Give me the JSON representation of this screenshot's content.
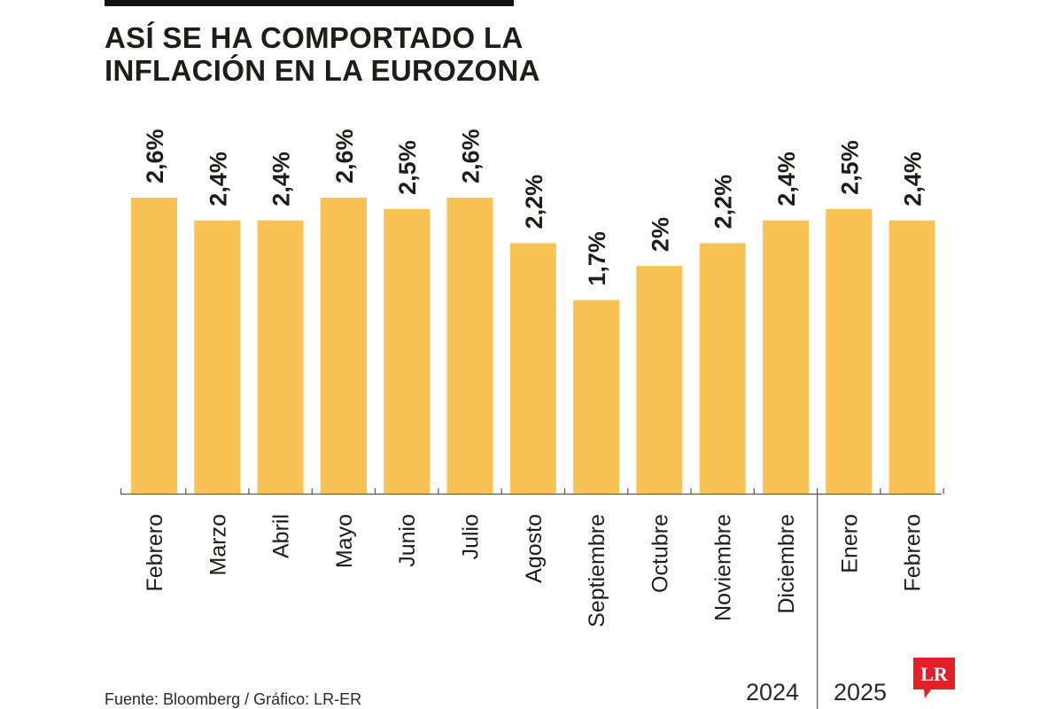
{
  "header": {
    "title_line1": "ASÍ SE HA COMPORTADO LA",
    "title_line2": "INFLACIÓN EN LA EUROZONA"
  },
  "footer": {
    "source": "Fuente: Bloomberg / Gráfico: LR-ER",
    "year_left": "2024",
    "year_right": "2025",
    "logo_text": "LR"
  },
  "colors": {
    "bar": "#f8c254",
    "text": "#1d1d1b",
    "axis": "#555555",
    "logo": "#e3202a"
  },
  "chart_data": {
    "type": "bar",
    "categories": [
      "Febrero",
      "Marzo",
      "Abril",
      "Mayo",
      "Junio",
      "Julio",
      "Agosto",
      "Septiembre",
      "Octubre",
      "Noviembre",
      "Diciembre",
      "Enero",
      "Febrero"
    ],
    "values": [
      2.6,
      2.4,
      2.4,
      2.6,
      2.5,
      2.6,
      2.2,
      1.7,
      2.0,
      2.2,
      2.4,
      2.5,
      2.4
    ],
    "labels": [
      "2,6%",
      "2,4%",
      "2,4%",
      "2,6%",
      "2,5%",
      "2,6%",
      "2,2%",
      "1,7%",
      "2%",
      "2,2%",
      "2,4%",
      "2,5%",
      "2,4%"
    ],
    "year_groups": [
      {
        "year": "2024",
        "categories": [
          "Febrero",
          "Marzo",
          "Abril",
          "Mayo",
          "Junio",
          "Julio",
          "Agosto",
          "Septiembre",
          "Octubre",
          "Noviembre",
          "Diciembre"
        ]
      },
      {
        "year": "2025",
        "categories": [
          "Enero",
          "Febrero"
        ]
      }
    ],
    "ylim": [
      0,
      2.6
    ],
    "grid": false,
    "legend": "none",
    "title": "ASÍ SE HA COMPORTADO LA INFLACIÓN EN LA EUROZONA"
  }
}
